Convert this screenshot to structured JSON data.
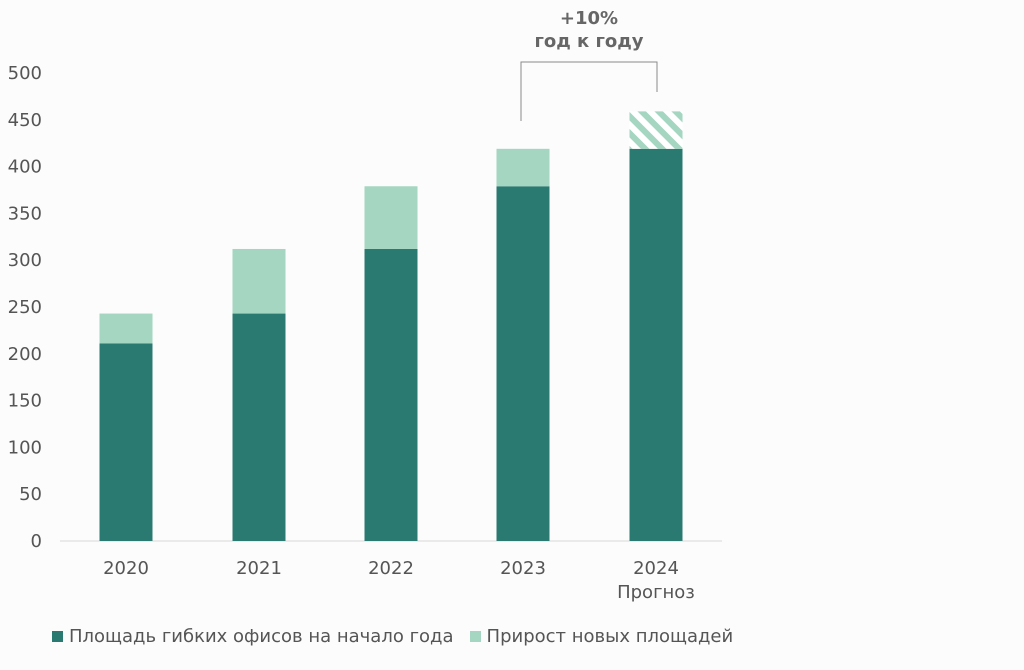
{
  "chart_data": {
    "type": "bar",
    "stacked": true,
    "categories": [
      "2020",
      "2021",
      "2022",
      "2023",
      "2024"
    ],
    "category_sublabels": [
      "",
      "",
      "",
      "",
      "Прогноз"
    ],
    "series": [
      {
        "name": "Площадь гибких офисов на начало года",
        "values": [
          211,
          243,
          312,
          379,
          419
        ],
        "color": "#2b7a72"
      },
      {
        "name": "Прирост новых площадей",
        "values": [
          32,
          69,
          67,
          40,
          40
        ],
        "color": "#a5d6c1",
        "hatched_categories": [
          "2024"
        ]
      }
    ],
    "ylim": [
      0,
      500
    ],
    "yticks": [
      0,
      50,
      100,
      150,
      200,
      250,
      300,
      350,
      400,
      450,
      500
    ],
    "title": "",
    "xlabel": "",
    "ylabel": "",
    "legend_position": "bottom",
    "annotation": {
      "line1": "+10%",
      "line2": "год к году",
      "from_category": "2023",
      "to_category": "2024"
    }
  }
}
